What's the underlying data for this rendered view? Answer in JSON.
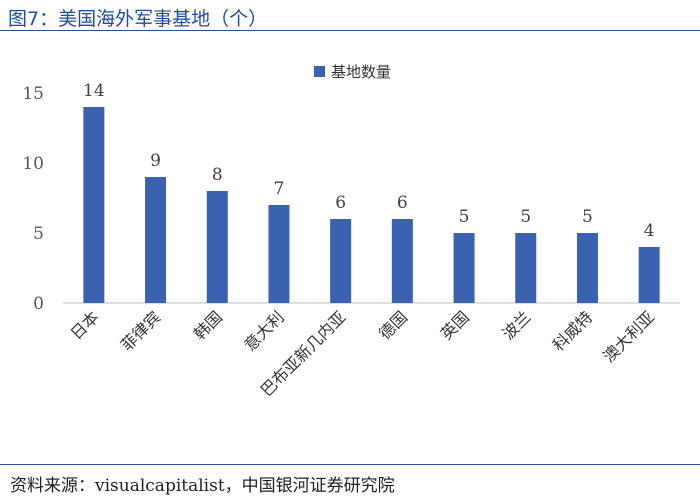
{
  "header": {
    "title": "图7：美国海外军事基地（个）"
  },
  "footer": {
    "source": "资料来源：visualcapitalist，中国银河证券研究院"
  },
  "colors": {
    "bar": "#3a62b0",
    "rule": "#2c4f94",
    "title": "#1f4e9e"
  },
  "chart_data": {
    "type": "bar",
    "categories": [
      "日本",
      "菲律宾",
      "韩国",
      "意大利",
      "巴布亚新几内亚",
      "德国",
      "英国",
      "波兰",
      "科威特",
      "澳大利亚"
    ],
    "series": [
      {
        "name": "基地数量",
        "values": [
          14,
          9,
          8,
          7,
          6,
          6,
          5,
          5,
          5,
          4
        ]
      }
    ],
    "yticks": [
      "0",
      "5",
      "10",
      "15"
    ],
    "ylim": [
      0,
      15
    ],
    "legend": "top-center",
    "grid": false,
    "data_labels": true
  }
}
